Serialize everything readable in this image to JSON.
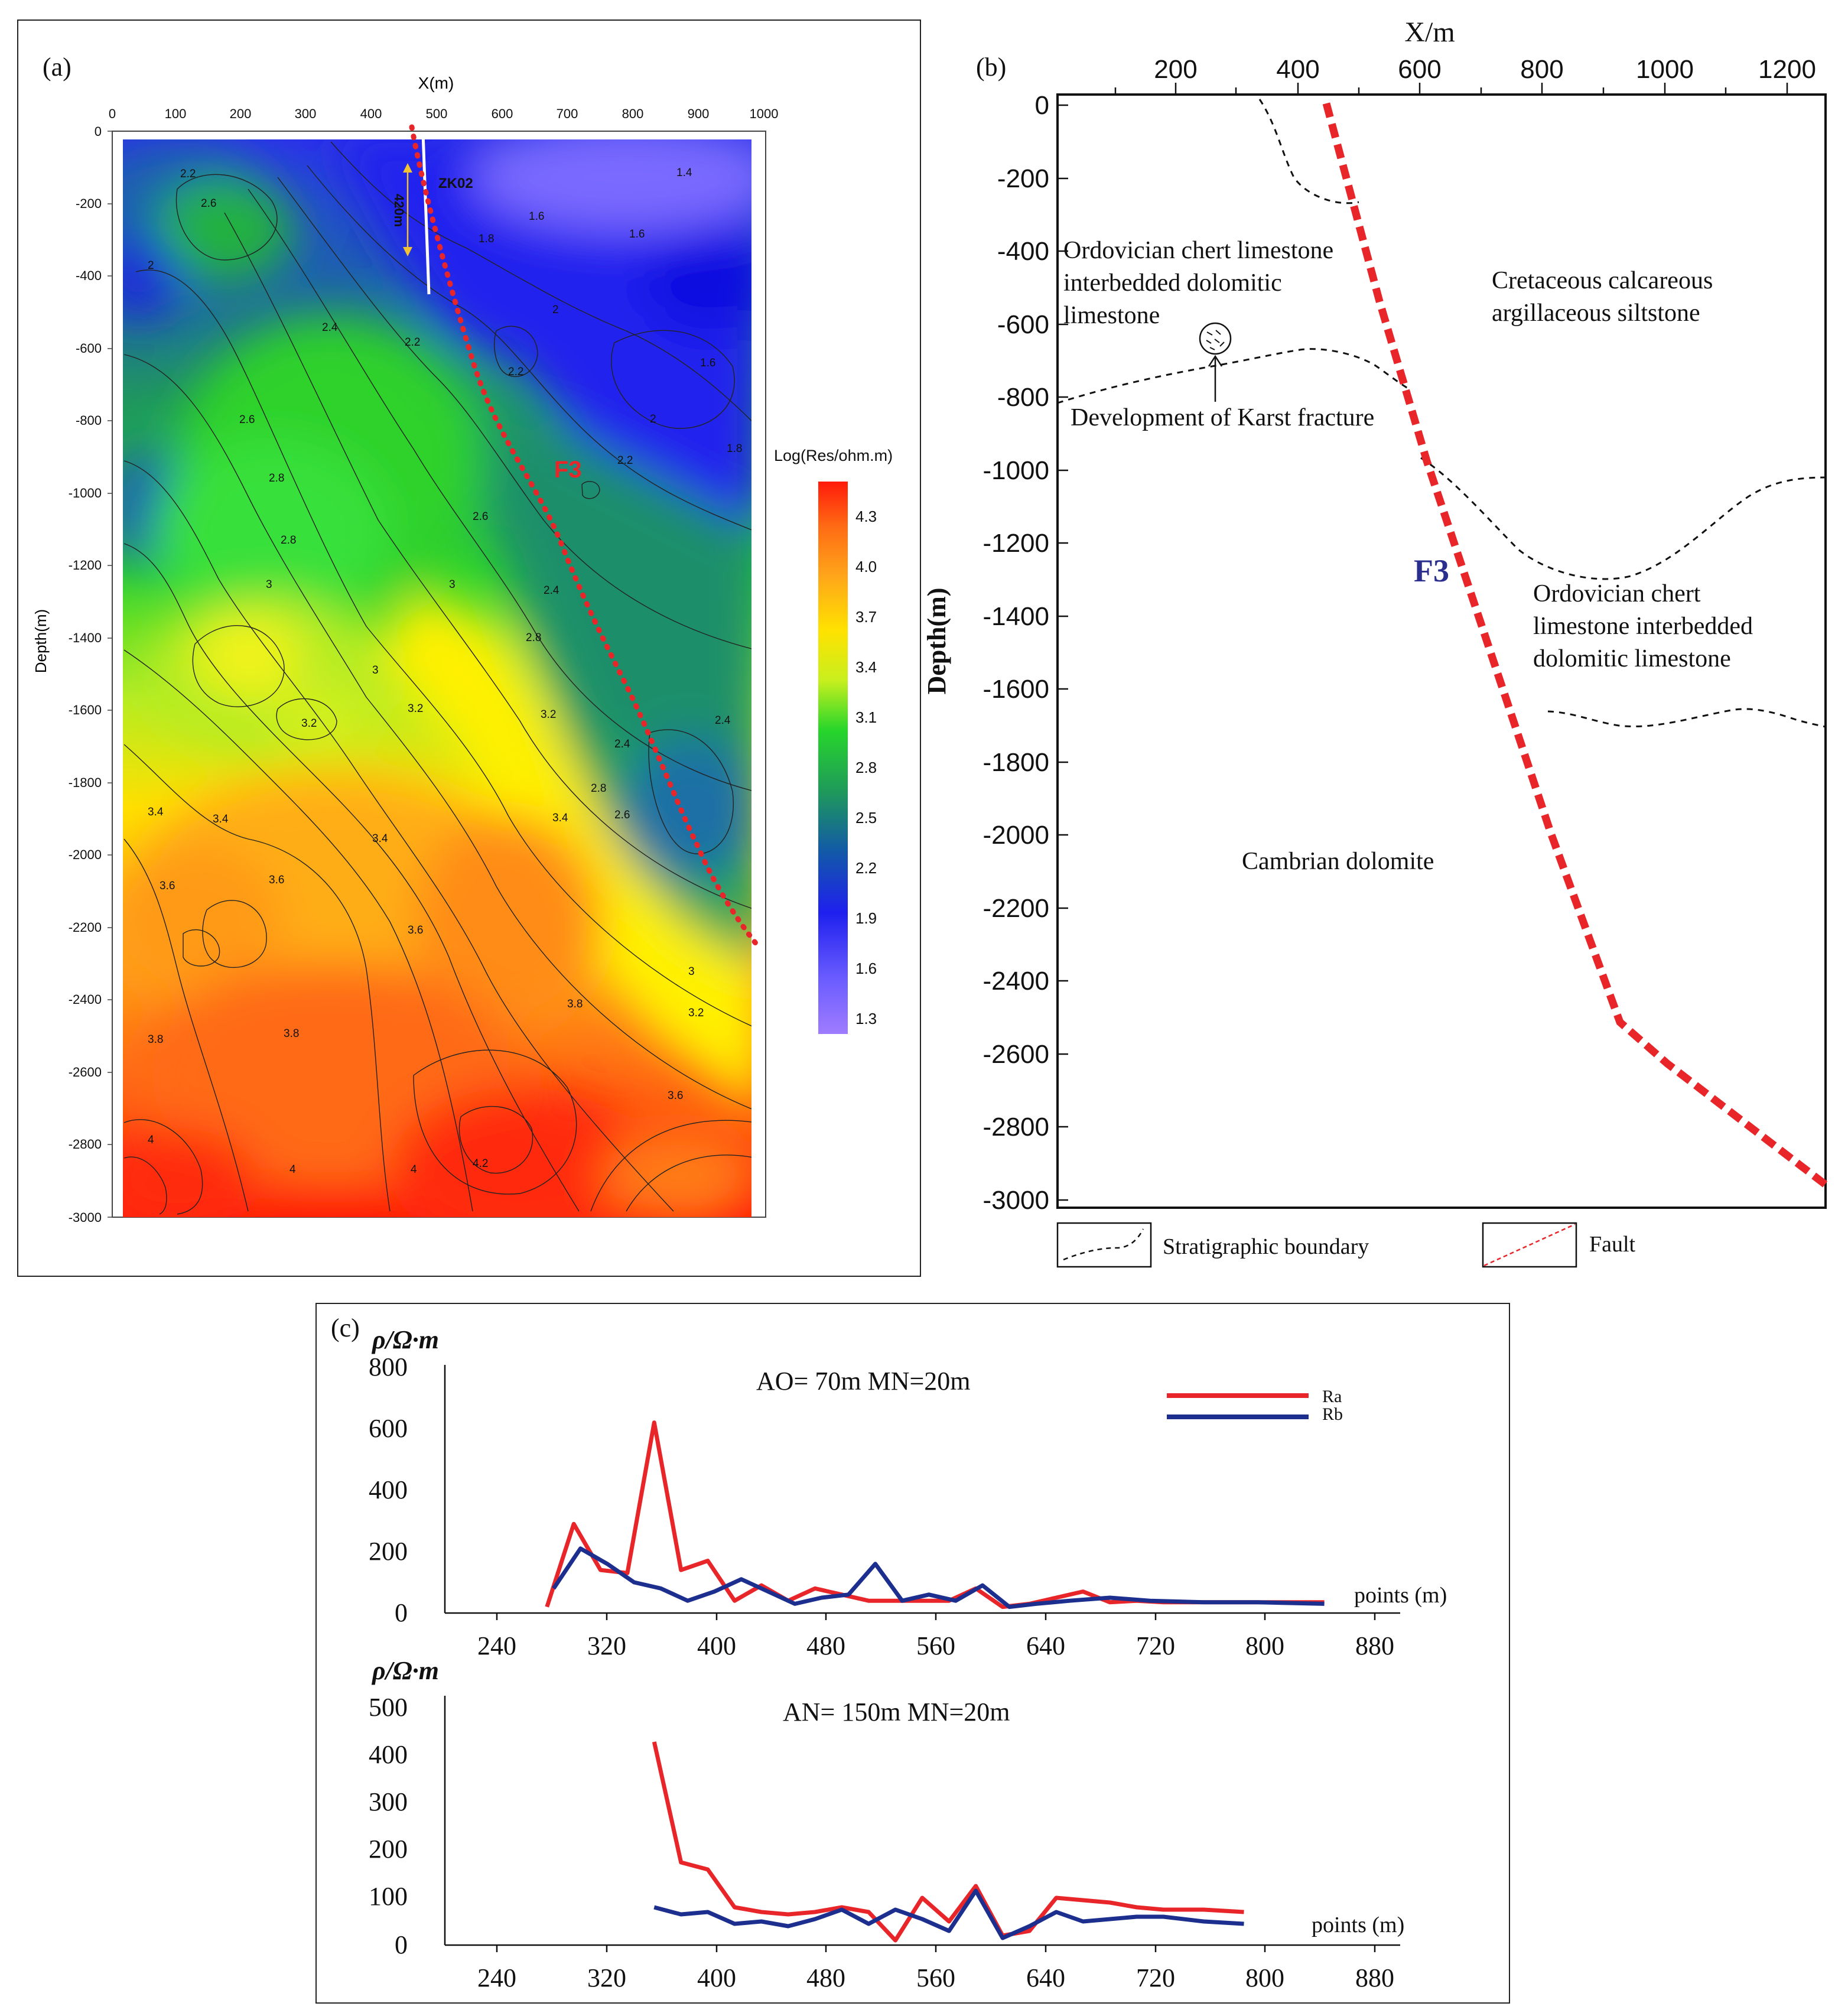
{
  "colors": {
    "fault": "#e8262a",
    "ra": "#e8262a",
    "rb": "#1d2f8e",
    "f3_b": "#2a2f8e"
  },
  "panel_a": {
    "label": "(a)",
    "x_title": "X(m)",
    "y_title": "Depth(m)",
    "x_ticks": [
      "0",
      "100",
      "200",
      "300",
      "400",
      "500",
      "600",
      "700",
      "800",
      "900",
      "1000"
    ],
    "y_ticks": [
      "0",
      "-200",
      "-400",
      "-600",
      "-800",
      "-1000",
      "-1200",
      "-1400",
      "-1600",
      "-1800",
      "-2000",
      "-2200",
      "-2400",
      "-2600",
      "-2800",
      "-3000"
    ],
    "borehole": "ZK02",
    "dimension": "420m",
    "fault_label": "F3",
    "colorbar_title": "Log(Res/ohm.m)",
    "colorbar_ticks": [
      "4.3",
      "4.0",
      "3.7",
      "3.4",
      "3.1",
      "2.8",
      "2.5",
      "2.2",
      "1.9",
      "1.6",
      "1.3"
    ],
    "contour_labels": [
      "1.4",
      "1.6",
      "1.6",
      "1.6",
      "1.8",
      "1.8",
      "2",
      "2",
      "2",
      "2.2",
      "2.2",
      "2.2",
      "2.2",
      "2.4",
      "2.4",
      "2.4",
      "2.4",
      "2.6",
      "2.6",
      "2.6",
      "2.6",
      "2.8",
      "2.8",
      "2.8",
      "2.8",
      "3",
      "3",
      "3",
      "3",
      "3.2",
      "3.2",
      "3.2",
      "3.2",
      "3.4",
      "3.4",
      "3.4",
      "3.4",
      "3.6",
      "3.6",
      "3.6",
      "3.6",
      "3.8",
      "3.8",
      "3.8",
      "4",
      "4",
      "4",
      "4.2"
    ]
  },
  "panel_b": {
    "label": "(b)",
    "x_title": "X/m",
    "y_title": "Depth(m)",
    "x_ticks": [
      "200",
      "400",
      "600",
      "800",
      "1000",
      "1200"
    ],
    "y_ticks": [
      "0",
      "-200",
      "-400",
      "-600",
      "-800",
      "-1000",
      "-1200",
      "-1400",
      "-1600",
      "-1800",
      "-2000",
      "-2200",
      "-2400",
      "-2600",
      "-2800",
      "-3000"
    ],
    "units": {
      "u1": [
        "Ordovician chert limestone",
        "interbedded dolomitic",
        "limestone"
      ],
      "u2": [
        "Cretaceous calcareous",
        "argillaceous siltstone"
      ],
      "u3": [
        "Ordovician chert",
        "limestone interbedded",
        "dolomitic limestone"
      ],
      "u4": [
        "Cambrian dolomite"
      ]
    },
    "karst_label": "Development of Karst fracture",
    "fault_label": "F3",
    "legend": {
      "boundary": "Stratigraphic boundary",
      "fault": "Fault"
    }
  },
  "panel_c": {
    "label": "(c)",
    "xlabel": "points (m)",
    "x_ticks": [
      "240",
      "320",
      "400",
      "480",
      "560",
      "640",
      "720",
      "800",
      "880"
    ],
    "legend": {
      "ra": "Ra",
      "rb": "Rb"
    }
  },
  "chart_data": [
    {
      "type": "line",
      "title": "AO= 70m MN=20m",
      "ylabel": "ρ/Ω·m",
      "xlabel": "points (m)",
      "xlim": [
        200,
        900
      ],
      "ylim": [
        0,
        800
      ],
      "y_ticks": [
        "0",
        "200",
        "400",
        "600",
        "800"
      ],
      "series": [
        {
          "name": "Ra",
          "x": [
            270,
            290,
            310,
            330,
            350,
            370,
            390,
            410,
            430,
            450,
            470,
            490,
            510,
            530,
            550,
            570,
            590,
            610,
            630,
            650,
            670,
            690,
            710,
            730,
            760,
            790,
            820,
            850
          ],
          "values": [
            20,
            290,
            140,
            130,
            620,
            140,
            170,
            40,
            90,
            40,
            80,
            60,
            40,
            40,
            40,
            40,
            80,
            20,
            30,
            50,
            70,
            35,
            40,
            35,
            35,
            35,
            35,
            35
          ]
        },
        {
          "name": "Rb",
          "x": [
            275,
            295,
            315,
            335,
            355,
            375,
            395,
            415,
            435,
            455,
            475,
            495,
            515,
            535,
            555,
            575,
            595,
            615,
            635,
            660,
            690,
            720,
            760,
            800,
            850
          ],
          "values": [
            80,
            210,
            160,
            100,
            80,
            40,
            70,
            110,
            70,
            30,
            50,
            60,
            160,
            40,
            60,
            40,
            90,
            20,
            30,
            40,
            50,
            40,
            35,
            35,
            30
          ]
        }
      ]
    },
    {
      "type": "line",
      "title": "AN= 150m MN=20m",
      "ylabel": "ρ/Ω·m",
      "xlabel": "points (m)",
      "xlim": [
        200,
        900
      ],
      "ylim": [
        0,
        500
      ],
      "y_ticks": [
        "0",
        "100",
        "200",
        "300",
        "400",
        "500"
      ],
      "series": [
        {
          "name": "Ra",
          "x": [
            350,
            370,
            390,
            410,
            430,
            450,
            470,
            490,
            510,
            530,
            550,
            570,
            590,
            610,
            630,
            650,
            670,
            690,
            710,
            730,
            760,
            790
          ],
          "values": [
            430,
            175,
            160,
            80,
            70,
            65,
            70,
            80,
            70,
            10,
            100,
            50,
            125,
            20,
            30,
            100,
            95,
            90,
            80,
            75,
            75,
            70
          ]
        },
        {
          "name": "Rb",
          "x": [
            350,
            370,
            390,
            410,
            430,
            450,
            470,
            490,
            510,
            530,
            550,
            570,
            590,
            610,
            630,
            650,
            670,
            690,
            710,
            730,
            760,
            790
          ],
          "values": [
            80,
            65,
            70,
            45,
            50,
            40,
            55,
            75,
            45,
            75,
            55,
            30,
            115,
            15,
            40,
            70,
            50,
            55,
            60,
            60,
            50,
            45
          ]
        }
      ]
    }
  ]
}
